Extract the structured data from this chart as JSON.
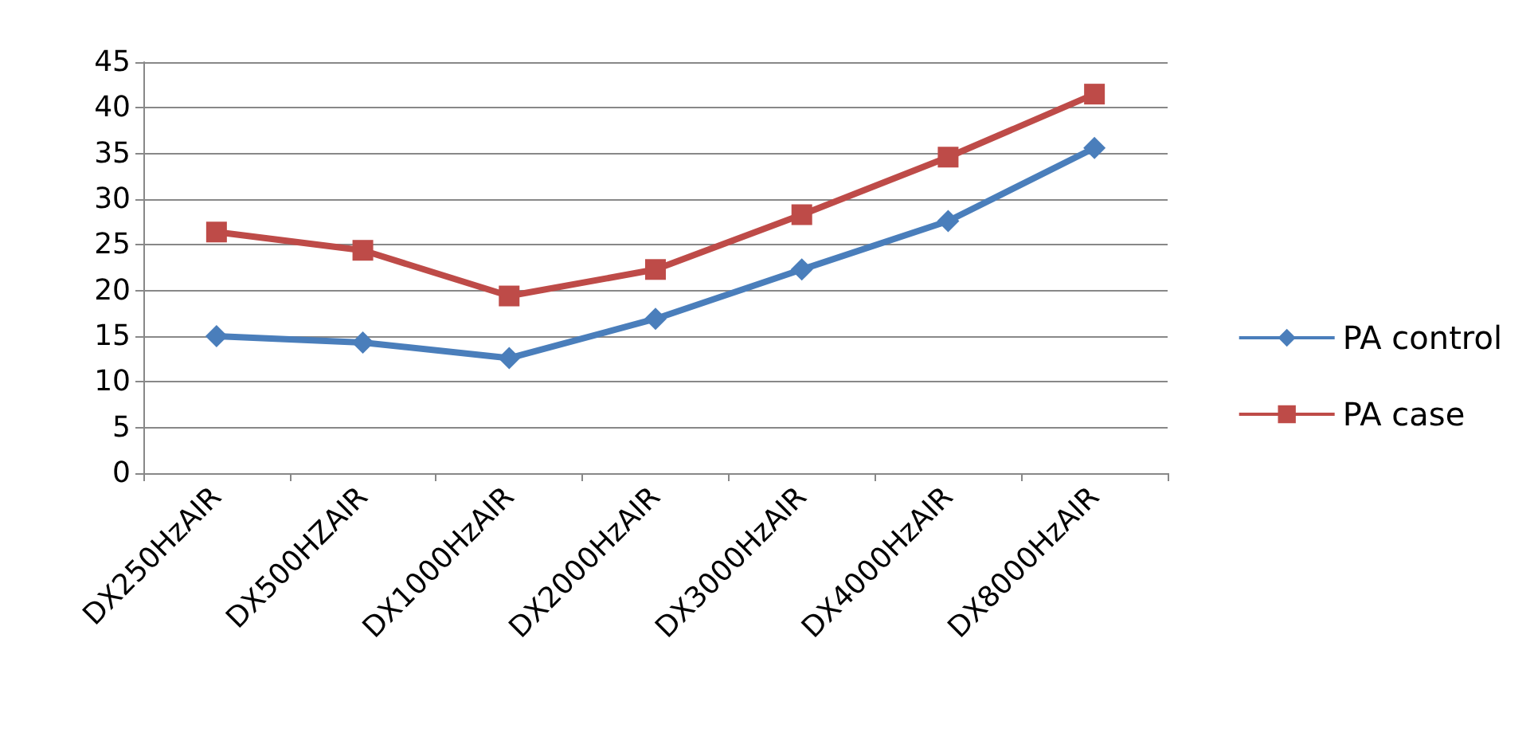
{
  "chart_data": {
    "type": "line",
    "categories": [
      "DX250HzAIR",
      "DX500HZAIR",
      "DX1000HzAIR",
      "DX2000HzAIR",
      "DX3000HzAIR",
      "DX4000HzAIR",
      "DX8000HzAIR"
    ],
    "series": [
      {
        "name": "PA control",
        "color": "#4a7ebb",
        "marker": "diamond",
        "values": [
          15.0,
          14.3,
          12.6,
          16.9,
          22.3,
          27.6,
          35.6
        ]
      },
      {
        "name": "PA case",
        "color": "#be4b48",
        "marker": "square",
        "values": [
          26.4,
          24.4,
          19.4,
          22.3,
          28.3,
          34.6,
          41.5
        ]
      }
    ],
    "ylim": [
      0,
      45
    ],
    "yticks": [
      0,
      5,
      10,
      15,
      20,
      25,
      30,
      35,
      40,
      45
    ],
    "grid": "y",
    "legend": "right",
    "line_style": "solid"
  }
}
